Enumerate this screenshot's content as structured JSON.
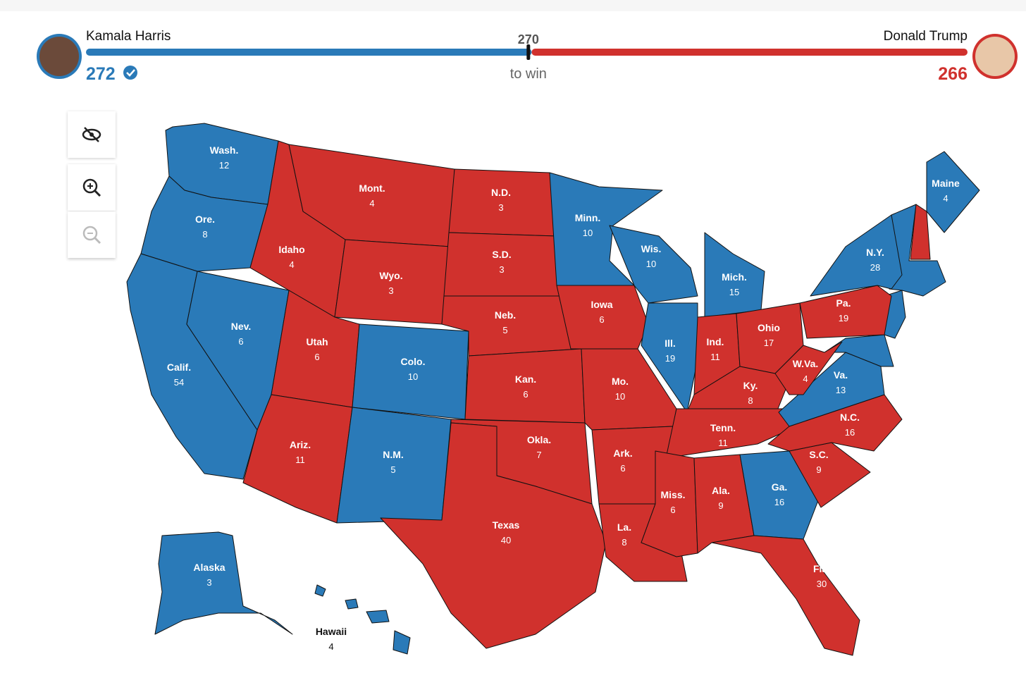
{
  "header": {
    "candidates": [
      {
        "name": "Kamala Harris",
        "votes": 272,
        "color": "#2a7ab8"
      },
      {
        "name": "Donald Trump",
        "votes": 266,
        "color": "#d0312d"
      }
    ],
    "threshold": {
      "value": 270,
      "label": "to win"
    }
  },
  "states": [
    {
      "name": "Wash.",
      "votes": 12,
      "color": "#2a7ab8"
    },
    {
      "name": "Ore.",
      "votes": 8,
      "color": "#2a7ab8"
    },
    {
      "name": "Calif.",
      "votes": 54,
      "color": "#2a7ab8"
    },
    {
      "name": "Nev.",
      "votes": 6,
      "color": "#2a7ab8"
    },
    {
      "name": "Idaho",
      "votes": 4,
      "color": "#d0312d"
    },
    {
      "name": "Mont.",
      "votes": 4,
      "color": "#d0312d"
    },
    {
      "name": "Wyo.",
      "votes": 3,
      "color": "#d0312d"
    },
    {
      "name": "Utah",
      "votes": 6,
      "color": "#d0312d"
    },
    {
      "name": "Colo.",
      "votes": 10,
      "color": "#2a7ab8"
    },
    {
      "name": "Ariz.",
      "votes": 11,
      "color": "#d0312d"
    },
    {
      "name": "N.M.",
      "votes": 5,
      "color": "#2a7ab8"
    },
    {
      "name": "N.D.",
      "votes": 3,
      "color": "#d0312d"
    },
    {
      "name": "S.D.",
      "votes": 3,
      "color": "#d0312d"
    },
    {
      "name": "Neb.",
      "votes": 5,
      "color": "#d0312d"
    },
    {
      "name": "Kan.",
      "votes": 6,
      "color": "#d0312d"
    },
    {
      "name": "Okla.",
      "votes": 7,
      "color": "#d0312d"
    },
    {
      "name": "Texas",
      "votes": 40,
      "color": "#d0312d"
    },
    {
      "name": "Minn.",
      "votes": 10,
      "color": "#2a7ab8"
    },
    {
      "name": "Iowa",
      "votes": 6,
      "color": "#d0312d"
    },
    {
      "name": "Mo.",
      "votes": 10,
      "color": "#d0312d"
    },
    {
      "name": "Ark.",
      "votes": 6,
      "color": "#d0312d"
    },
    {
      "name": "La.",
      "votes": 8,
      "color": "#d0312d"
    },
    {
      "name": "Wis.",
      "votes": 10,
      "color": "#2a7ab8"
    },
    {
      "name": "Ill.",
      "votes": 19,
      "color": "#2a7ab8"
    },
    {
      "name": "Mich.",
      "votes": 15,
      "color": "#2a7ab8"
    },
    {
      "name": "Ind.",
      "votes": 11,
      "color": "#d0312d"
    },
    {
      "name": "Ohio",
      "votes": 17,
      "color": "#d0312d"
    },
    {
      "name": "Ky.",
      "votes": 8,
      "color": "#d0312d"
    },
    {
      "name": "Tenn.",
      "votes": 11,
      "color": "#d0312d"
    },
    {
      "name": "Miss.",
      "votes": 6,
      "color": "#d0312d"
    },
    {
      "name": "Ala.",
      "votes": 9,
      "color": "#d0312d"
    },
    {
      "name": "Ga.",
      "votes": 16,
      "color": "#2a7ab8"
    },
    {
      "name": "Fla.",
      "votes": 30,
      "color": "#d0312d"
    },
    {
      "name": "S.C.",
      "votes": 9,
      "color": "#d0312d"
    },
    {
      "name": "N.C.",
      "votes": 16,
      "color": "#d0312d"
    },
    {
      "name": "Va.",
      "votes": 13,
      "color": "#2a7ab8"
    },
    {
      "name": "W.Va.",
      "votes": 4,
      "color": "#d0312d"
    },
    {
      "name": "Pa.",
      "votes": 19,
      "color": "#d0312d"
    },
    {
      "name": "N.Y.",
      "votes": 28,
      "color": "#2a7ab8"
    },
    {
      "name": "Maine",
      "votes": 4,
      "color": "#2a7ab8"
    },
    {
      "name": "Alaska",
      "votes": 3,
      "color": "#2a7ab8"
    },
    {
      "name": "Hawaii",
      "votes": 4,
      "color": "#2a7ab8"
    }
  ]
}
